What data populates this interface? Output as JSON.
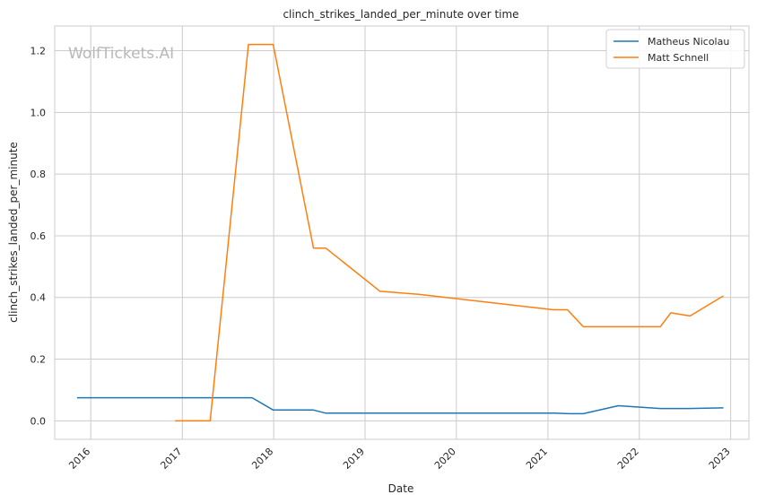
{
  "chart_data": {
    "type": "line",
    "title": "clinch_strikes_landed_per_minute over time",
    "xlabel": "Date",
    "ylabel": "clinch_strikes_landed_per_minute",
    "watermark": "WolfTickets.AI",
    "x_tick_labels": [
      "2016",
      "2017",
      "2018",
      "2019",
      "2020",
      "2021",
      "2022",
      "2023"
    ],
    "y_tick_labels": [
      "0.0",
      "0.2",
      "0.4",
      "0.6",
      "0.8",
      "1.0",
      "1.2"
    ],
    "xlim": [
      "2015-08-10",
      "2023-03-15"
    ],
    "ylim": [
      -0.06,
      1.28
    ],
    "grid": true,
    "legend_position": "top-right",
    "series": [
      {
        "name": "Matheus Nicolau",
        "color": "#1f77b4",
        "points": [
          [
            "2015-11-07",
            0.075
          ],
          [
            "2017-10-07",
            0.075
          ],
          [
            "2017-12-30",
            0.035
          ],
          [
            "2018-06-09",
            0.035
          ],
          [
            "2018-07-28",
            0.025
          ],
          [
            "2021-01-30",
            0.025
          ],
          [
            "2021-03-27",
            0.023
          ],
          [
            "2021-05-22",
            0.023
          ],
          [
            "2021-10-09",
            0.049
          ],
          [
            "2022-03-26",
            0.04
          ],
          [
            "2022-07-16",
            0.04
          ],
          [
            "2022-12-03",
            0.042
          ]
        ]
      },
      {
        "name": "Matt Schnell",
        "color": "#ff7f0e",
        "points": [
          [
            "2016-12-03",
            0.0
          ],
          [
            "2017-04-22",
            0.0
          ],
          [
            "2017-09-22",
            1.22
          ],
          [
            "2017-12-30",
            1.22
          ],
          [
            "2018-06-09",
            0.56
          ],
          [
            "2018-07-28",
            0.56
          ],
          [
            "2019-03-02",
            0.42
          ],
          [
            "2019-08-03",
            0.41
          ],
          [
            "2021-01-23",
            0.36
          ],
          [
            "2021-03-20",
            0.36
          ],
          [
            "2021-05-22",
            0.305
          ],
          [
            "2022-03-26",
            0.305
          ],
          [
            "2022-05-07",
            0.35
          ],
          [
            "2022-07-23",
            0.34
          ],
          [
            "2022-12-03",
            0.405
          ]
        ]
      }
    ]
  }
}
